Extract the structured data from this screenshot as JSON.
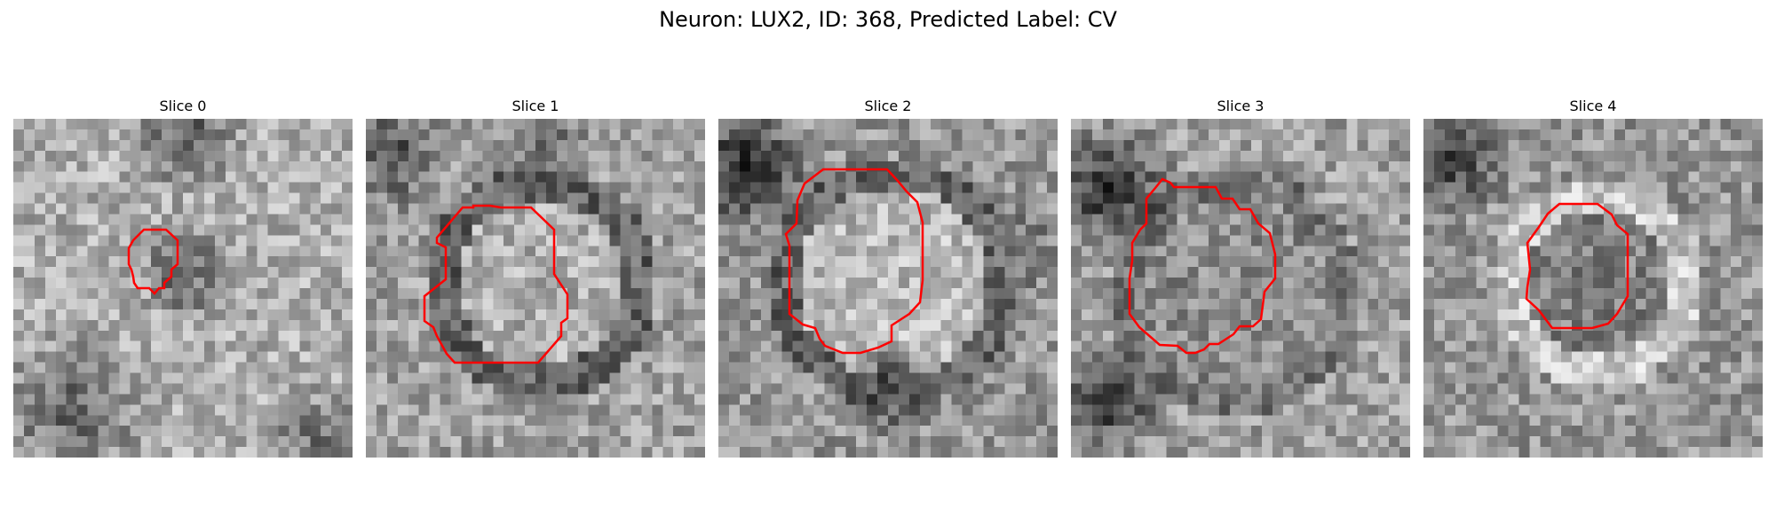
{
  "figure": {
    "suptitle": "Neuron: LUX2, ID: 368, Predicted Label: CV"
  },
  "panels": [
    {
      "title": "Slice 0",
      "image": "grayscale-microscopy-patch",
      "contour_color": "#ff0000"
    },
    {
      "title": "Slice 1",
      "image": "grayscale-microscopy-patch",
      "contour_color": "#ff0000"
    },
    {
      "title": "Slice 2",
      "image": "grayscale-microscopy-patch",
      "contour_color": "#ff0000"
    },
    {
      "title": "Slice 3",
      "image": "grayscale-microscopy-patch",
      "contour_color": "#ff0000"
    },
    {
      "title": "Slice 4",
      "image": "grayscale-microscopy-patch",
      "contour_color": "#ff0000"
    }
  ]
}
